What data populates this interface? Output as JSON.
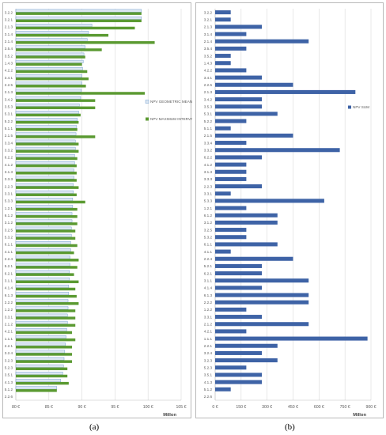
{
  "captions": {
    "a": "(a)",
    "b": "(b)"
  },
  "colors": {
    "geometric_mean": "#dbe6f1",
    "geometric_mean_border": "#5b8fc7",
    "maximum_interval": "#5b9a32",
    "sum": "#3e63a6",
    "grid": "#d9d9d9",
    "axis_text": "#595959"
  },
  "chart_data": [
    {
      "type": "bar",
      "orientation": "horizontal",
      "xlabel": "Millon",
      "xlim": [
        80,
        105
      ],
      "xticks": [
        "80 €",
        "85 €",
        "90 €",
        "95 €",
        "100 €",
        "105 €"
      ],
      "xtick_values": [
        80,
        85,
        90,
        95,
        100,
        105
      ],
      "legend_position": "right",
      "categories": [
        "3.2.2",
        "3.2.1",
        "2.1.3",
        "3.1.4",
        "2.1.4",
        "3.5.4",
        "3.5.2",
        "1.4.3",
        "4.2.2",
        "3.4.1",
        "2.2.5",
        "2.1.3",
        "3.4.2",
        "3.5.3",
        "5.3.1",
        "5.2.2",
        "5.1.1",
        "2.1.5",
        "3.3.4",
        "3.3.2",
        "6.2.2",
        "4.1.2",
        "3.1.3",
        "3.3.3",
        "2.2.3",
        "3.3.1",
        "5.3.3",
        "1.2.1",
        "6.1.2",
        "3.1.2",
        "3.2.5",
        "5.3.2",
        "6.1.1",
        "4.1.1",
        "2.2.4",
        "5.2.1",
        "6.2.1",
        "3.1.1",
        "4.1.4",
        "6.1.3",
        "2.2.2",
        "1.2.2",
        "3.3.1",
        "2.1.2",
        "4.2.1",
        "1.1.1",
        "2.2.1",
        "3.2.4",
        "3.2.3",
        "5.2.3",
        "3.5.1",
        "4.1.3",
        "5.1.2",
        "2.2.6"
      ],
      "series": [
        {
          "name": "NPV GEOMETRIC MEAN",
          "values": [
            99.0,
            99.0,
            91.5,
            91.0,
            90.8,
            90.5,
            90.3,
            90.2,
            90.1,
            90.0,
            90.0,
            89.9,
            89.8,
            89.6,
            89.5,
            89.3,
            89.2,
            89.1,
            89.0,
            89.0,
            88.9,
            88.9,
            88.8,
            88.8,
            88.7,
            88.7,
            88.6,
            88.6,
            88.5,
            88.5,
            88.4,
            88.4,
            88.3,
            88.3,
            88.2,
            88.2,
            88.1,
            88.1,
            88.0,
            88.0,
            87.9,
            87.9,
            87.8,
            87.8,
            87.7,
            87.6,
            87.5,
            87.4,
            87.3,
            87.2,
            87.1,
            86.8,
            86.2,
            80.0
          ]
        },
        {
          "name": "NPV MAXIMUM INTERVAL",
          "values": [
            99.0,
            99.0,
            98.0,
            94.0,
            101.0,
            93.0,
            90.5,
            90.0,
            90.8,
            91.0,
            90.6,
            99.5,
            92.0,
            92.0,
            89.8,
            89.5,
            89.3,
            92.0,
            89.5,
            89.5,
            89.3,
            89.2,
            89.2,
            89.2,
            89.5,
            89.2,
            90.5,
            89.3,
            89.3,
            89.3,
            89.0,
            89.0,
            89.3,
            88.8,
            89.5,
            89.3,
            88.8,
            89.5,
            89.0,
            89.2,
            89.5,
            89.0,
            89.0,
            89.0,
            88.5,
            89.0,
            88.5,
            88.5,
            88.5,
            87.8,
            87.8,
            88.0,
            86.2,
            80.0
          ]
        }
      ]
    },
    {
      "type": "bar",
      "orientation": "horizontal",
      "xlabel": "Millon",
      "xlim": [
        0,
        900
      ],
      "xticks": [
        "0 €",
        "150 €",
        "300 €",
        "450 €",
        "600 €",
        "750 €",
        "900 €"
      ],
      "xtick_values": [
        0,
        150,
        300,
        450,
        600,
        750,
        900
      ],
      "legend_position": "top-right",
      "categories": [
        "3.2.2",
        "3.2.1",
        "2.1.3",
        "3.1.4",
        "2.1.4",
        "3.5.4",
        "3.5.2",
        "1.4.3",
        "4.2.2",
        "3.4.1",
        "2.2.5",
        "2.1.3",
        "3.4.2",
        "3.5.3",
        "5.3.1",
        "5.2.2",
        "5.1.1",
        "2.1.5",
        "3.3.4",
        "3.3.2",
        "6.2.2",
        "4.1.2",
        "3.1.3",
        "3.3.3",
        "2.2.3",
        "3.3.1",
        "5.3.3",
        "1.2.1",
        "6.1.2",
        "3.1.2",
        "3.2.5",
        "5.3.2",
        "6.1.1",
        "4.1.1",
        "2.2.4",
        "5.2.1",
        "6.2.1",
        "3.1.1",
        "4.1.4",
        "6.1.3",
        "2.2.2",
        "1.2.2",
        "3.3.1",
        "2.1.2",
        "4.2.1",
        "1.1.1",
        "2.2.1",
        "3.2.4",
        "3.2.3",
        "5.2.3",
        "3.5.1",
        "4.1.3",
        "5.1.2",
        "2.2.6"
      ],
      "series": [
        {
          "name": "NPV SUM",
          "values": [
            90,
            90,
            270,
            180,
            540,
            180,
            90,
            90,
            180,
            270,
            450,
            810,
            270,
            270,
            360,
            180,
            90,
            450,
            180,
            720,
            270,
            180,
            180,
            180,
            270,
            90,
            630,
            180,
            360,
            360,
            180,
            180,
            360,
            90,
            450,
            270,
            270,
            540,
            270,
            540,
            540,
            180,
            270,
            540,
            180,
            880,
            360,
            270,
            360,
            180,
            270,
            270,
            90,
            0
          ]
        }
      ]
    }
  ]
}
